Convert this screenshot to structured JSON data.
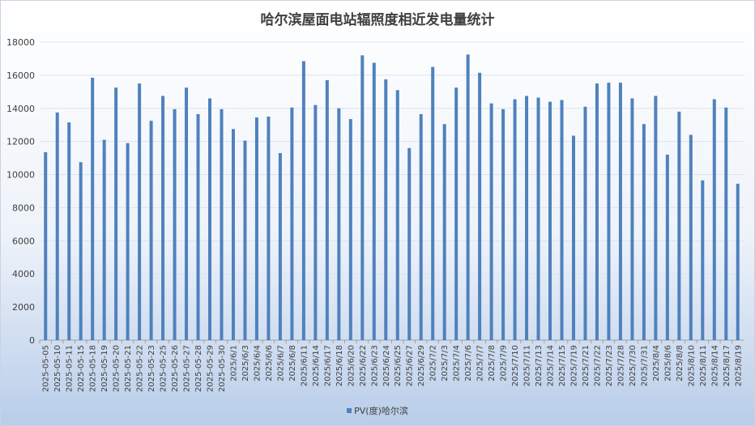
{
  "chart_data": {
    "type": "bar",
    "title": "哈尔滨屋面电站辐照度相近发电量统计",
    "xlabel": "",
    "ylabel": "",
    "ylim": [
      0,
      18000
    ],
    "yticks": [
      0,
      2000,
      4000,
      6000,
      8000,
      10000,
      12000,
      14000,
      16000,
      18000
    ],
    "grid": true,
    "legend_position": "bottom",
    "bar_color": "#4f81bd",
    "categories": [
      "2025-05-05",
      "2025-05-10",
      "2025-05-11",
      "2025-05-15",
      "2025-05-18",
      "2025-05-19",
      "2025-05-20",
      "2025-05-21",
      "2025-05-22",
      "2025-05-23",
      "2025-05-25",
      "2025-05-26",
      "2025-05-27",
      "2025-05-28",
      "2025-05-29",
      "2025-05-30",
      "2025/6/1",
      "2025/6/3",
      "2025/6/4",
      "2025/6/6",
      "2025/6/7",
      "2025/6/8",
      "2025/6/11",
      "2025/6/14",
      "2025/6/17",
      "2025/6/18",
      "2025/6/20",
      "2025/6/22",
      "2025/6/23",
      "2025/6/24",
      "2025/6/25",
      "2025/6/27",
      "2025/6/29",
      "2025/7/2",
      "2025/7/3",
      "2025/7/4",
      "2025/7/6",
      "2025/7/7",
      "2025/7/8",
      "2025/7/9",
      "2025/7/10",
      "2025/7/11",
      "2025/7/13",
      "2025/7/14",
      "2025/7/15",
      "2025/7/19",
      "2025/7/21",
      "2025/7/22",
      "2025/7/23",
      "2025/7/28",
      "2025/7/30",
      "2025/7/31",
      "2025/8/4",
      "2025/8/6",
      "2025/8/8",
      "2025/8/10",
      "2025/8/11",
      "2025/8/14",
      "2025/8/17",
      "2025/8/19"
    ],
    "series": [
      {
        "name": "PV(度)哈尔滨",
        "values": [
          11350,
          13750,
          13150,
          10750,
          15850,
          12100,
          15250,
          11900,
          15500,
          13250,
          14750,
          13950,
          15250,
          13650,
          14600,
          13950,
          12750,
          12050,
          13450,
          13500,
          11300,
          14050,
          16850,
          14200,
          15700,
          14000,
          13350,
          17200,
          16750,
          15750,
          15100,
          11600,
          13650,
          16500,
          13050,
          15250,
          17250,
          16150,
          14300,
          13950,
          14550,
          14750,
          14650,
          14400,
          14500,
          12350,
          14100,
          15500,
          15550,
          15550,
          14600,
          13050,
          14750,
          11200,
          13800,
          12400,
          9650,
          14550,
          14050,
          9450
        ]
      }
    ]
  }
}
